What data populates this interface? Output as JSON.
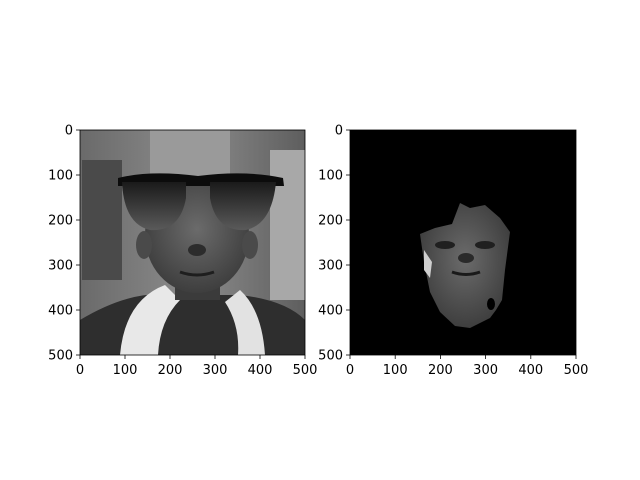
{
  "chart_data": [
    {
      "type": "image",
      "content": "grayscale photo of a face with black sunglasses overlaid",
      "xlim": [
        0,
        500
      ],
      "ylim": [
        500,
        0
      ],
      "xticks": [
        0,
        100,
        200,
        300,
        400,
        500
      ],
      "yticks": [
        0,
        100,
        200,
        300,
        400,
        500
      ],
      "xlabel": "",
      "ylabel": "",
      "title": ""
    },
    {
      "type": "image",
      "content": "face region segmented on a black background",
      "xlim": [
        0,
        500
      ],
      "ylim": [
        500,
        0
      ],
      "xticks": [
        0,
        100,
        200,
        300,
        400,
        500
      ],
      "yticks": [
        0,
        100,
        200,
        300,
        400,
        500
      ],
      "xlabel": "",
      "ylabel": "",
      "title": ""
    }
  ]
}
